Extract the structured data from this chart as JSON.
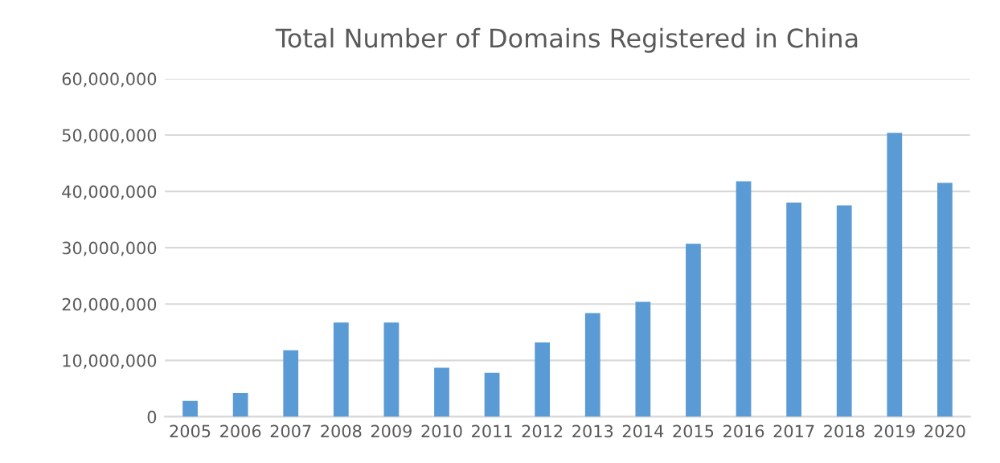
{
  "chart_data": {
    "type": "bar",
    "title": "Total Number of Domains Registered in China",
    "categories": [
      "2005",
      "2006",
      "2007",
      "2008",
      "2009",
      "2010",
      "2011",
      "2012",
      "2013",
      "2014",
      "2015",
      "2016",
      "2017",
      "2018",
      "2019",
      "2020"
    ],
    "values": [
      2800000,
      4200000,
      11800000,
      16700000,
      16700000,
      8700000,
      7800000,
      13200000,
      18400000,
      20400000,
      30700000,
      41800000,
      38000000,
      37500000,
      50400000,
      41500000
    ],
    "color": "#5b9bd5",
    "ylim": [
      0,
      60000000
    ],
    "yticks": [
      {
        "value": 0,
        "label": "0"
      },
      {
        "value": 10000000,
        "label": "10,000,000"
      },
      {
        "value": 20000000,
        "label": "20,000,000"
      },
      {
        "value": 30000000,
        "label": "30,000,000"
      },
      {
        "value": 40000000,
        "label": "40,000,000"
      },
      {
        "value": 50000000,
        "label": "50,000,000"
      },
      {
        "value": 60000000,
        "label": "60,000,000"
      }
    ],
    "grid": "y"
  }
}
